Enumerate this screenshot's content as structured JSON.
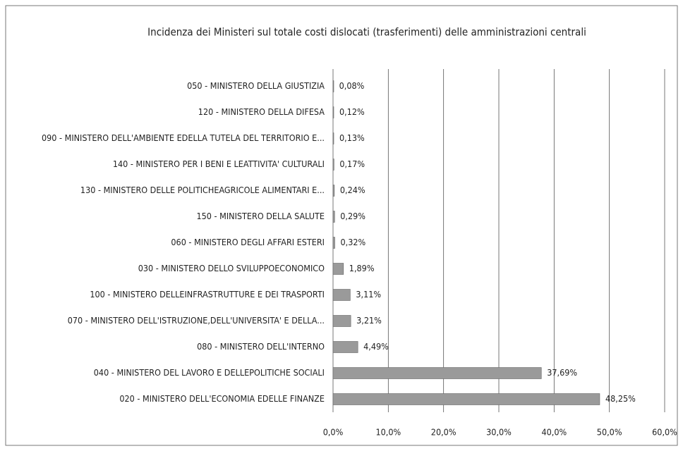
{
  "chart_data": {
    "type": "hbar",
    "title": "Incidenza dei Ministeri sul totale costi dislocati (trasferimenti) delle amministrazioni centrali",
    "categories": [
      "050 - MINISTERO DELLA GIUSTIZIA",
      "120 - MINISTERO DELLA DIFESA",
      "090 - MINISTERO DELL'AMBIENTE EDELLA TUTELA DEL TERRITORIO E...",
      "140 - MINISTERO PER I BENI E LEATTIVITA' CULTURALI",
      "130 - MINISTERO DELLE POLITICHEAGRICOLE ALIMENTARI E...",
      "150 - MINISTERO DELLA SALUTE",
      "060 - MINISTERO DEGLI AFFARI ESTERI",
      "030 - MINISTERO DELLO SVILUPPOECONOMICO",
      "100 - MINISTERO DELLEINFRASTRUTTURE E DEI TRASPORTI",
      "070 - MINISTERO DELL'ISTRUZIONE,DELL'UNIVERSITA' E DELLA...",
      "080 - MINISTERO DELL'INTERNO",
      "040 - MINISTERO DEL LAVORO E DELLEPOLITICHE SOCIALI",
      "020 - MINISTERO DELL'ECONOMIA EDELLE FINANZE"
    ],
    "values": [
      0.08,
      0.12,
      0.13,
      0.17,
      0.24,
      0.29,
      0.32,
      1.89,
      3.11,
      3.21,
      4.49,
      37.69,
      48.25
    ],
    "value_labels": [
      "0,08%",
      "0,12%",
      "0,13%",
      "0,17%",
      "0,24%",
      "0,29%",
      "0,32%",
      "1,89%",
      "3,11%",
      "3,21%",
      "4,49%",
      "37,69%",
      "48,25%"
    ],
    "color": "#9a9a9a",
    "xlim": [
      0,
      60
    ],
    "xticks": [
      {
        "value": 0,
        "label": "0,0%"
      },
      {
        "value": 10,
        "label": "10,0%"
      },
      {
        "value": 20,
        "label": "20,0%"
      },
      {
        "value": 30,
        "label": "30,0%"
      },
      {
        "value": 40,
        "label": "40,0%"
      },
      {
        "value": 50,
        "label": "50,0%"
      },
      {
        "value": 60,
        "label": "60,0%"
      }
    ],
    "grid": true
  }
}
